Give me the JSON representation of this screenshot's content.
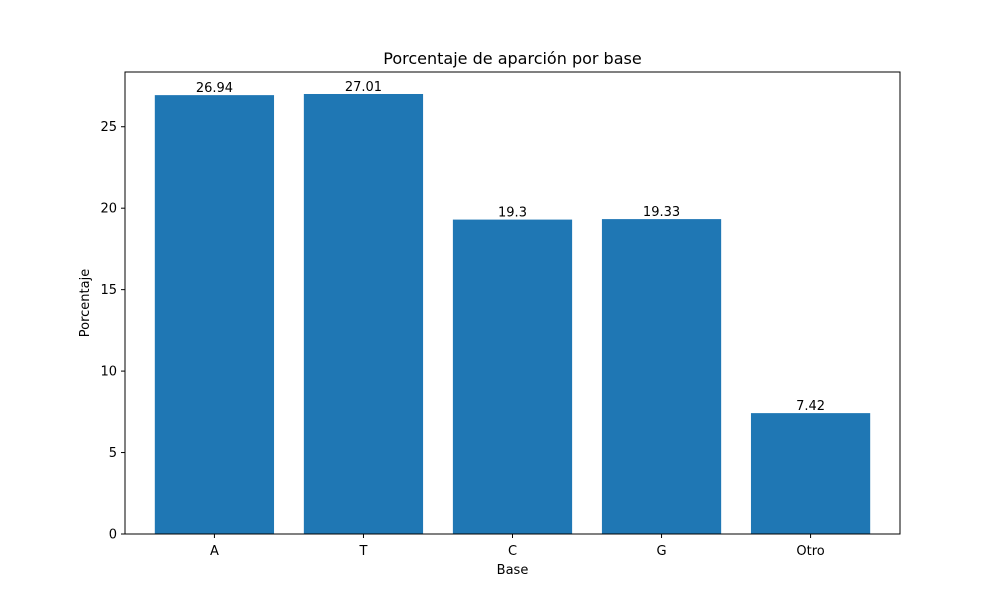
{
  "chart_data": {
    "type": "bar",
    "title": "Porcentaje de aparción por base",
    "xlabel": "Base",
    "ylabel": "Porcentaje",
    "categories": [
      "A",
      "T",
      "C",
      "G",
      "Otro"
    ],
    "values": [
      26.94,
      27.01,
      19.3,
      19.33,
      7.42
    ],
    "value_labels": [
      "26.94",
      "27.01",
      "19.3",
      "19.33",
      "7.42"
    ],
    "ylim": [
      0,
      28.36
    ],
    "yticks": [
      0,
      5,
      10,
      15,
      20,
      25
    ],
    "grid": false,
    "bar_color": "#1f77b4"
  }
}
